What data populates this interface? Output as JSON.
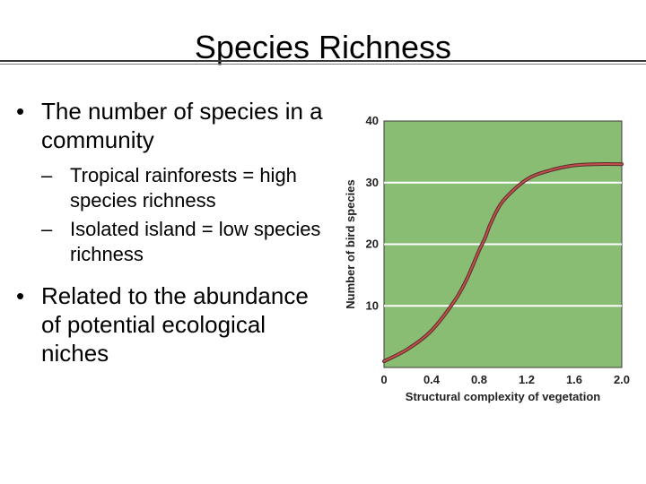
{
  "slide": {
    "title": "Species Richness",
    "bullets": [
      {
        "text": "The number of species in a community",
        "sub": [
          "Tropical rainforests = high species richness",
          "Isolated island = low species richness"
        ]
      },
      {
        "text": "Related to the abundance of potential ecological niches"
      }
    ]
  },
  "chart_data": {
    "type": "line",
    "title": "",
    "xlabel": "Structural complexity of vegetation",
    "ylabel": "Number of bird species",
    "xlim": [
      0,
      2.0
    ],
    "ylim": [
      0,
      40
    ],
    "x_ticks": [
      "0",
      "0.4",
      "0.8",
      "1.2",
      "1.6",
      "2.0"
    ],
    "y_ticks": [
      "10",
      "20",
      "30",
      "40"
    ],
    "grid": "horizontal",
    "background_color": "#88bd73",
    "line_color": "#c0504d",
    "series": [
      {
        "x": [
          0,
          0.2,
          0.4,
          0.6,
          0.7,
          0.8,
          0.85,
          0.9,
          1.0,
          1.2,
          1.4,
          1.6,
          1.8,
          2.0
        ],
        "y": [
          1.0,
          3.0,
          6.0,
          11.0,
          14.5,
          19.0,
          21.0,
          23.5,
          27.0,
          30.5,
          32.0,
          32.8,
          33.0,
          33.0
        ]
      }
    ]
  }
}
